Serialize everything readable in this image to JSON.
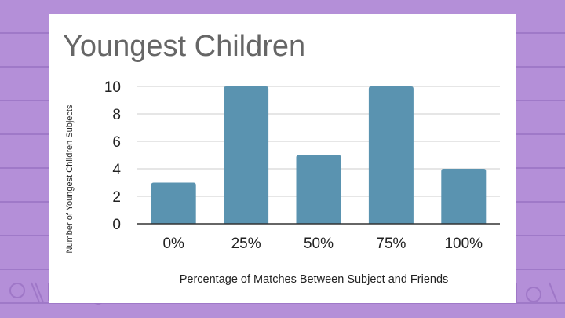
{
  "slide": {
    "background_color": "#b48fd8",
    "card_color": "#ffffff"
  },
  "chart_data": {
    "type": "bar",
    "title": "Youngest Children",
    "xlabel": "Percentage of Matches Between Subject and Friends",
    "ylabel": "Number of Youngest Children Subjects",
    "categories": [
      "0%",
      "25%",
      "50%",
      "75%",
      "100%"
    ],
    "values": [
      3,
      10,
      5,
      10,
      4
    ],
    "ylim": [
      0,
      10
    ],
    "yticks": [
      0,
      2,
      4,
      6,
      8,
      10
    ],
    "grid": true,
    "legend": "none",
    "bar_color": "#5a93b0"
  }
}
